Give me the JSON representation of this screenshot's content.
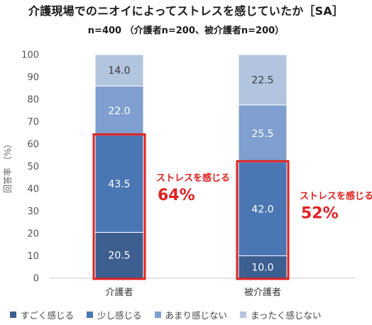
{
  "chart_data": {
    "type": "bar",
    "stacked": true,
    "title": "介護現場でのニオイによってストレスを感じていたか［SA］",
    "subtitle": "n=400 （介護者n=200、被介護者n=200）",
    "ylabel": "回答率 （%）",
    "ylim": [
      0,
      100
    ],
    "yticks": [
      "0",
      "10",
      "20",
      "30",
      "40",
      "50",
      "60",
      "70",
      "80",
      "90",
      "100"
    ],
    "categories": [
      "介護者",
      "被介護者"
    ],
    "series": [
      {
        "name": "すごく感じる",
        "color": "#3c5f8f",
        "values": [
          20.5,
          10.0
        ],
        "labels": [
          "20.5",
          "10.0"
        ]
      },
      {
        "name": "少し感じる",
        "color": "#4a77b4",
        "values": [
          43.5,
          42.0
        ],
        "labels": [
          "43.5",
          "42.0"
        ]
      },
      {
        "name": "あまり感じない",
        "color": "#7e9fcf",
        "values": [
          22.0,
          25.5
        ],
        "labels": [
          "22.0",
          "25.5"
        ]
      },
      {
        "name": "まったく感じない",
        "color": "#b3c4df",
        "values": [
          14.0,
          22.5
        ],
        "labels": [
          "14.0",
          "22.5"
        ]
      }
    ],
    "annotations": [
      {
        "category": "介護者",
        "text": "ストレスを感じる",
        "value": "64%"
      },
      {
        "category": "被介護者",
        "text": "ストレスを感じる",
        "value": "52%"
      }
    ],
    "grid": false,
    "legend_position": "bottom"
  }
}
